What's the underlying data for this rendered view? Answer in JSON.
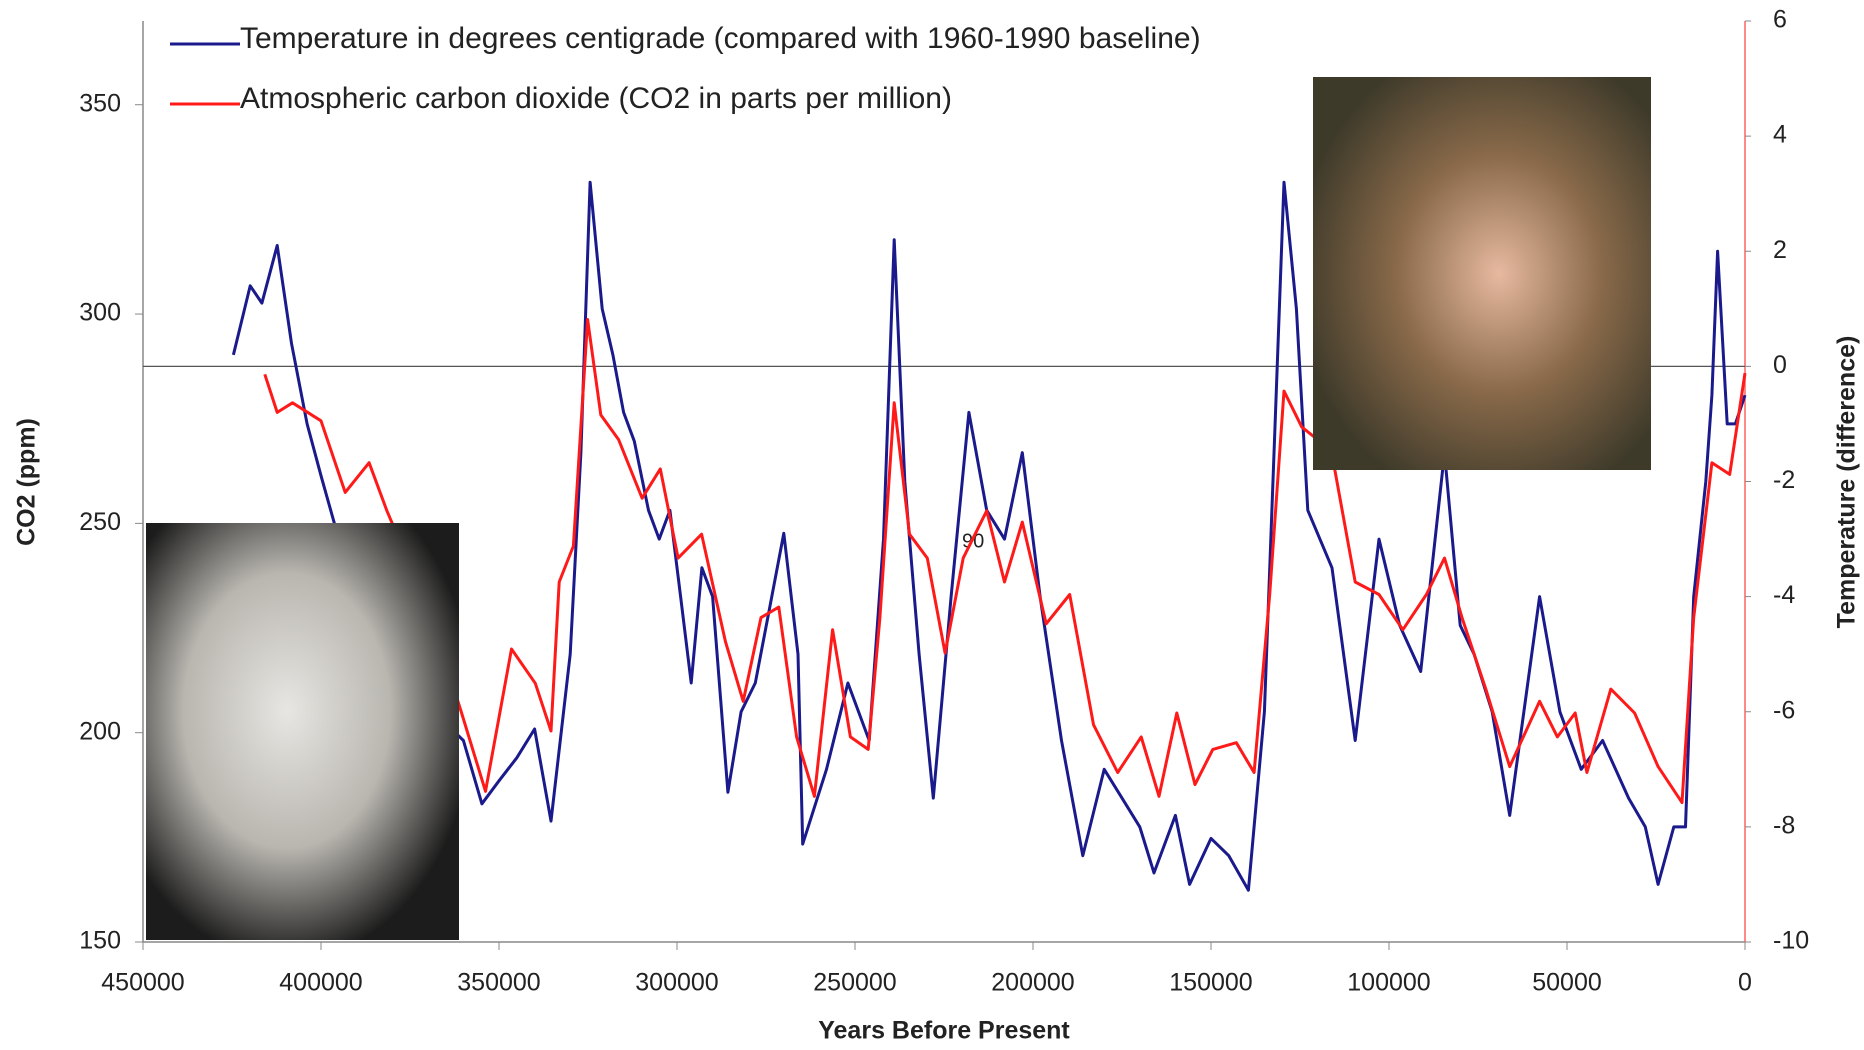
{
  "chart_data": {
    "type": "line",
    "xlabel": "Years Before Present",
    "ylabel": "CO2 (ppm)",
    "y2label": "Temperature (difference)",
    "annotation": "90",
    "xlim": [
      450000,
      0
    ],
    "xticks": [
      450000,
      400000,
      350000,
      300000,
      250000,
      200000,
      150000,
      100000,
      50000,
      0
    ],
    "ylim": [
      150,
      370
    ],
    "yticks": [
      150,
      200,
      250,
      300,
      350
    ],
    "y2lim": [
      -10,
      6
    ],
    "y2ticks": [
      -10,
      -8,
      -6,
      -4,
      -2,
      0,
      2,
      4,
      6
    ],
    "series": [
      {
        "name": "Temperature in degrees centigrade (compared with 1960-1990 baseline)",
        "color": "#1a1a8c",
        "axis": "y2",
        "x": [
          424600,
          419900,
          416600,
          412300,
          408300,
          403900,
          400000,
          395000,
          390000,
          385000,
          380000,
          375000,
          370000,
          365000,
          360000,
          354800,
          350000,
          345000,
          340000,
          335400,
          330000,
          327000,
          324400,
          321000,
          318000,
          315000,
          312000,
          308000,
          305000,
          302000,
          299000,
          296000,
          293000,
          290000,
          285700,
          282000,
          278000,
          274000,
          270000,
          266000,
          264700,
          258000,
          252000,
          246000,
          242000,
          239000,
          236000,
          232000,
          228000,
          223000,
          218000,
          213000,
          208000,
          203000,
          198000,
          192000,
          186000,
          180000,
          175000,
          170000,
          166000,
          160000,
          156000,
          150000,
          145000,
          139500,
          135000,
          132000,
          129500,
          126000,
          122800,
          116000,
          109500,
          102800,
          97000,
          91100,
          84400,
          80000,
          76100,
          71000,
          66100,
          61000,
          57700,
          52000,
          46000,
          40000,
          32700,
          28000,
          24400,
          20000,
          16700,
          14400,
          11000,
          9300,
          7700,
          5000,
          2700,
          0
        ],
        "values": [
          0.2,
          1.4,
          1.1,
          2.1,
          0.4,
          -1.0,
          -1.9,
          -3.0,
          -3.5,
          -4.5,
          -5.0,
          -5.5,
          -6.0,
          -6.2,
          -6.5,
          -7.6,
          -7.2,
          -6.8,
          -6.3,
          -7.9,
          -5.0,
          -1.5,
          3.2,
          1.0,
          0.2,
          -0.8,
          -1.3,
          -2.5,
          -3.0,
          -2.5,
          -4.0,
          -5.5,
          -3.5,
          -4.0,
          -7.4,
          -6.0,
          -5.5,
          -4.2,
          -2.9,
          -5.0,
          -8.3,
          -7.0,
          -5.5,
          -6.5,
          -3.0,
          2.2,
          -2.0,
          -5.0,
          -7.5,
          -4.0,
          -0.8,
          -2.5,
          -3.0,
          -1.5,
          -4.0,
          -6.5,
          -8.5,
          -7.0,
          -7.5,
          -8.0,
          -8.8,
          -7.8,
          -9.0,
          -8.2,
          -8.5,
          -9.1,
          -6.0,
          -1.0,
          3.2,
          1.0,
          -2.5,
          -3.5,
          -6.5,
          -3.0,
          -4.5,
          -5.3,
          -1.5,
          -4.5,
          -5.0,
          -6.0,
          -7.8,
          -5.5,
          -4.0,
          -6.0,
          -7.0,
          -6.5,
          -7.5,
          -8.0,
          -9.0,
          -8.0,
          -8.0,
          -4.0,
          -2.0,
          -0.5,
          2.0,
          -1.0,
          -1.0,
          -0.5
        ]
      },
      {
        "name": "Atmospheric carbon dioxide (CO2 in parts per million)",
        "color": "#ff1a1a",
        "x": [
          415800,
          412300,
          408000,
          400000,
          393200,
          386500,
          381500,
          375000,
          368000,
          360500,
          353800,
          346500,
          339800,
          335400,
          333100,
          329100,
          325100,
          321400,
          316400,
          309800,
          304700,
          299700,
          293100,
          286400,
          281400,
          276400,
          271400,
          266400,
          261400,
          256300,
          251300,
          246300,
          243000,
          239000,
          234700,
          229700,
          224700,
          219600,
          213000,
          208000,
          203000,
          196300,
          189700,
          183000,
          176200,
          169600,
          164600,
          159600,
          154500,
          149500,
          142900,
          137900,
          133500,
          129500,
          124500,
          116200,
          109500,
          102800,
          96100,
          89500,
          84400,
          79500,
          72800,
          66100,
          57700,
          52700,
          47700,
          44400,
          37700,
          31000,
          24400,
          17700,
          14400,
          9300,
          4300,
          0
        ],
        "values": [
          285.6,
          276.5,
          278.8,
          274.5,
          257.4,
          264.5,
          253,
          240,
          225,
          204.7,
          186,
          220,
          211.8,
          200.4,
          236,
          244.6,
          298.7,
          275.9,
          270,
          256,
          263,
          241.7,
          247.4,
          221.8,
          207.5,
          227.5,
          230,
          199,
          184.8,
          224.6,
          199,
          196,
          227.5,
          278.8,
          247.4,
          241.7,
          219,
          241.7,
          253,
          236,
          250.3,
          226,
          233,
          201.9,
          190.5,
          199,
          184.8,
          204.7,
          187.6,
          196,
          197.6,
          190.5,
          233,
          281.6,
          273,
          267.4,
          236,
          233,
          224.6,
          233,
          241.7,
          227.5,
          210.4,
          191.9,
          207.5,
          199,
          204.7,
          190.5,
          210.4,
          204.7,
          191.9,
          183.3,
          227.5,
          264.5,
          261.7,
          285.9
        ]
      }
    ]
  }
}
